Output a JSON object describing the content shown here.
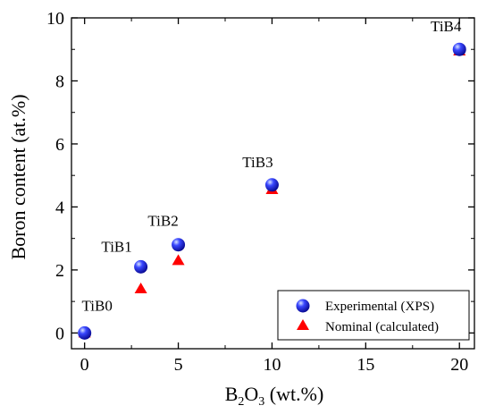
{
  "chart_data": {
    "type": "scatter",
    "title": "",
    "xlabel_parts": [
      "B",
      "2",
      "O",
      "3",
      " (wt.%)"
    ],
    "ylabel": "Boron content (at.%)",
    "xlim": [
      -0.7,
      20.8
    ],
    "ylim": [
      -0.5,
      10.0
    ],
    "x_ticks": [
      0,
      5,
      10,
      15,
      20
    ],
    "x_minor_ticks": [
      2.5,
      7.5,
      12.5,
      17.5
    ],
    "y_ticks": [
      0,
      2,
      4,
      6,
      8,
      10
    ],
    "y_minor_ticks": [
      1,
      3,
      5,
      7,
      9
    ],
    "grid": false,
    "legend_position": "bottom-right",
    "sample_labels": [
      "TiB0",
      "TiB1",
      "TiB2",
      "TiB3",
      "TiB4"
    ],
    "x": [
      0,
      3,
      5,
      10,
      20
    ],
    "series": [
      {
        "name": "Experimental (XPS)",
        "marker": "sphere",
        "color": "#1a1aff",
        "values": [
          0.0,
          2.1,
          2.8,
          4.7,
          9.0
        ]
      },
      {
        "name": "Nominal (calculated)",
        "marker": "triangle",
        "color": "#ff0000",
        "values": [
          0.0,
          1.4,
          2.3,
          4.55,
          8.95
        ]
      }
    ]
  }
}
